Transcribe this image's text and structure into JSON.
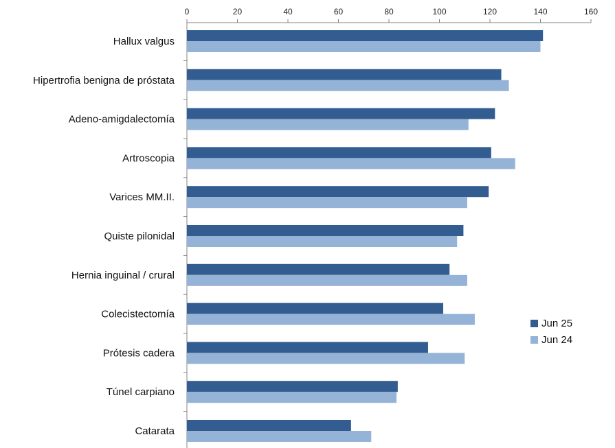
{
  "chart_data": {
    "type": "bar",
    "orientation": "horizontal",
    "x_axis_position": "top",
    "xlim": [
      0,
      160
    ],
    "x_ticks": [
      "0",
      "20",
      "40",
      "60",
      "80",
      "100",
      "120",
      "140",
      "160"
    ],
    "categories": [
      "Hallux valgus",
      "Hipertrofia benigna de próstata",
      "Adeno-amigdalectomía",
      "Artroscopia",
      "Varices MM.II.",
      "Quiste pilonidal",
      "Hernia inguinal / crural",
      "Colecistectomía",
      "Prótesis cadera",
      "Túnel carpiano",
      "Catarata"
    ],
    "series": [
      {
        "name": "Jun 25",
        "color": "#335D91",
        "values": [
          141,
          124.5,
          122,
          120.5,
          119.5,
          109.5,
          104,
          101.5,
          95.5,
          83.5,
          65
        ]
      },
      {
        "name": "Jun 24",
        "color": "#95B3D7",
        "values": [
          140,
          127.5,
          111.5,
          130,
          111,
          107,
          111,
          114,
          110,
          83,
          73
        ]
      }
    ],
    "legend_position": "right"
  }
}
